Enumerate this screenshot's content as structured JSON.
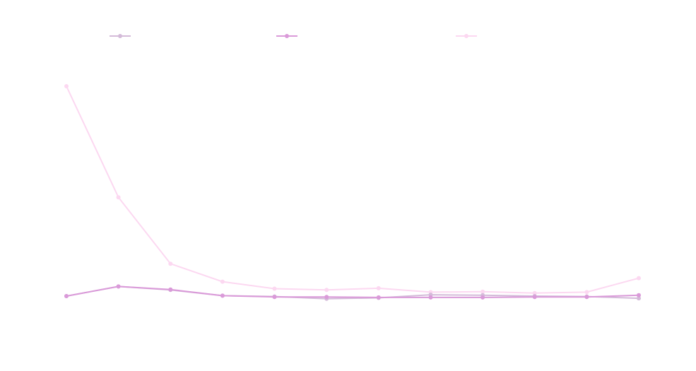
{
  "chart_data": {
    "type": "line",
    "title": "",
    "xlabel": "",
    "ylabel": "",
    "x": [
      0,
      1,
      2,
      3,
      4,
      5,
      6,
      7,
      8,
      9,
      10,
      11
    ],
    "ylim": [
      -20,
      380
    ],
    "grid": false,
    "legend_position": "top",
    "series": [
      {
        "name": "",
        "color": "#d4bbd9",
        "values": [
          0,
          11,
          7,
          0.5,
          -0.5,
          -3,
          -2,
          1.5,
          1,
          0,
          -0.5,
          -2.5
        ]
      },
      {
        "name": "",
        "color": "#da9ad9",
        "values": [
          0,
          11,
          7.5,
          0.5,
          -1,
          -1,
          -1.5,
          -1.5,
          -1.5,
          -1,
          -1,
          1
        ]
      },
      {
        "name": "",
        "color": "#fcd8f1",
        "values": [
          240,
          113,
          37,
          16.5,
          8.5,
          7,
          9,
          4.5,
          5,
          3.5,
          4.5,
          20.5
        ]
      }
    ]
  }
}
